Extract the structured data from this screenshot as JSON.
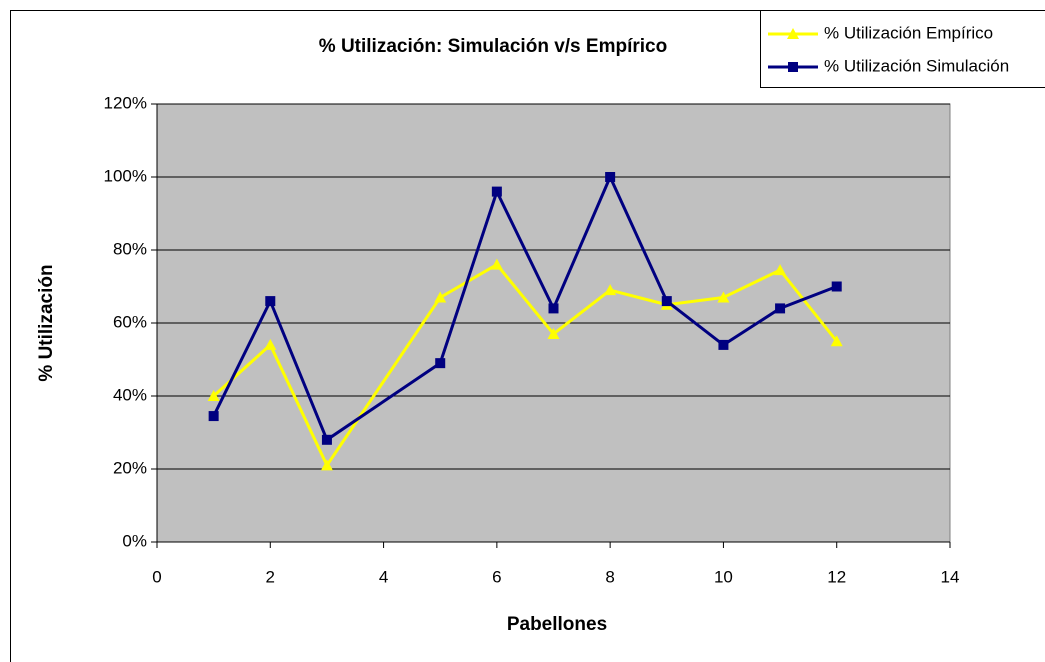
{
  "chart_data": {
    "type": "line",
    "title": "% Utilización: Simulación v/s Empírico",
    "xlabel": "Pabellones",
    "ylabel": "% Utilización",
    "x": [
      1,
      2,
      3,
      5,
      6,
      7,
      8,
      9,
      10,
      11,
      12
    ],
    "series": [
      {
        "name": "% Utilización Empírico",
        "color": "#ffff00",
        "marker": "triangle",
        "values": [
          40,
          54,
          21,
          67,
          76,
          57,
          69,
          65,
          67,
          74.5,
          55
        ]
      },
      {
        "name": "% Utilización Simulación",
        "color": "#000080",
        "marker": "square",
        "values": [
          34.5,
          66,
          28,
          49,
          96,
          64,
          100,
          66,
          54,
          64,
          70
        ]
      }
    ],
    "xlim": [
      0,
      14
    ],
    "xticks": [
      0,
      2,
      4,
      6,
      8,
      10,
      12,
      14
    ],
    "ylim": [
      0,
      120
    ],
    "yticks": [
      {
        "value": 0,
        "label": "0%"
      },
      {
        "value": 20,
        "label": "20%"
      },
      {
        "value": 40,
        "label": "40%"
      },
      {
        "value": 60,
        "label": "60%"
      },
      {
        "value": 80,
        "label": "80%"
      },
      {
        "value": 100,
        "label": "100%"
      },
      {
        "value": 120,
        "label": "120%"
      }
    ],
    "grid": true,
    "plot_background": "#c0c0c0",
    "legend": "top-right"
  }
}
